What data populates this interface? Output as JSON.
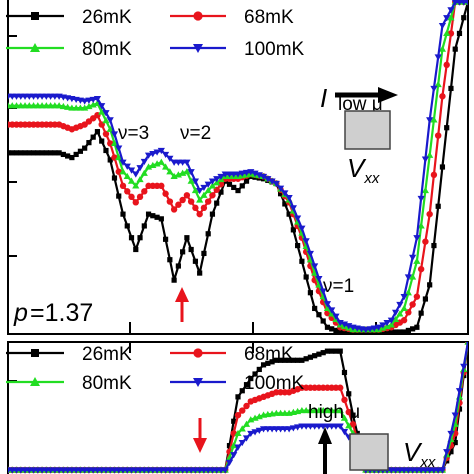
{
  "chart_data": [
    {
      "type": "line",
      "panel": "top",
      "annotation": "p =1.37",
      "param_symbol": "p",
      "param_value": "=1.37",
      "nu_labels": [
        "ν=3",
        "ν=2",
        "ν=1"
      ],
      "inset": {
        "direction_label": "low μ",
        "current_label": "I",
        "voltage_label": "V",
        "voltage_sub": "xx"
      },
      "series": [
        {
          "name": "26mK",
          "color": "#000000",
          "marker": "square",
          "values": [
            0.76,
            0.76,
            0.76,
            0.76,
            0.76,
            0.74,
            0.78,
            0.85,
            0.73,
            0.5,
            0.35,
            0.5,
            0.48,
            0.22,
            0.4,
            0.25,
            0.5,
            0.64,
            0.6,
            0.66,
            0.65,
            0.63,
            0.5,
            0.3,
            0.1,
            0.02,
            0.0,
            0.0,
            0.0,
            0.0,
            0.0,
            0.0,
            0.02,
            0.2,
            0.7,
            1.2,
            1.4
          ]
        },
        {
          "name": "68mK",
          "color": "#e8141c",
          "marker": "circle",
          "values": [
            0.88,
            0.88,
            0.88,
            0.88,
            0.88,
            0.86,
            0.88,
            0.92,
            0.8,
            0.62,
            0.55,
            0.62,
            0.62,
            0.52,
            0.58,
            0.5,
            0.58,
            0.65,
            0.65,
            0.67,
            0.66,
            0.63,
            0.55,
            0.4,
            0.22,
            0.08,
            0.02,
            0.01,
            0.01,
            0.01,
            0.02,
            0.05,
            0.15,
            0.5,
            1.0,
            1.4,
            1.4
          ]
        },
        {
          "name": "80mK",
          "color": "#22dd22",
          "marker": "triangle-up",
          "values": [
            0.96,
            0.96,
            0.96,
            0.96,
            0.96,
            0.95,
            0.95,
            0.97,
            0.86,
            0.68,
            0.62,
            0.7,
            0.72,
            0.66,
            0.68,
            0.56,
            0.62,
            0.66,
            0.66,
            0.67,
            0.66,
            0.63,
            0.56,
            0.42,
            0.25,
            0.1,
            0.03,
            0.01,
            0.01,
            0.01,
            0.03,
            0.1,
            0.3,
            0.75,
            1.2,
            1.4,
            1.4
          ]
        },
        {
          "name": "100mK",
          "color": "#1a1acc",
          "marker": "triangle-down",
          "values": [
            1.0,
            1.0,
            1.0,
            1.0,
            1.0,
            0.99,
            0.98,
            0.99,
            0.9,
            0.72,
            0.67,
            0.75,
            0.77,
            0.72,
            0.72,
            0.6,
            0.64,
            0.67,
            0.67,
            0.68,
            0.66,
            0.63,
            0.57,
            0.44,
            0.28,
            0.12,
            0.04,
            0.02,
            0.01,
            0.02,
            0.05,
            0.15,
            0.4,
            0.9,
            1.3,
            1.4,
            1.4
          ]
        }
      ],
      "ylim": [
        0,
        1.4
      ],
      "grid": false,
      "legend_position": "top-left"
    },
    {
      "type": "line",
      "panel": "bottom",
      "inset": {
        "direction_label": "high μ",
        "voltage_label": "V",
        "voltage_sub": "xx"
      },
      "series": [
        {
          "name": "26mK",
          "color": "#000000",
          "marker": "square",
          "values": [
            0.0,
            0.0,
            0.0,
            0.0,
            0.0,
            0.0,
            0.0,
            0.0,
            0.0,
            0.0,
            0.0,
            0.0,
            0.0,
            0.0,
            0.0,
            0.0,
            0.0,
            0.0,
            0.8,
            1.0,
            1.15,
            1.2,
            1.2,
            1.2,
            1.25,
            1.3,
            1.3,
            0.6,
            0.0,
            0.0,
            0.0,
            0.0,
            0.0,
            0.0,
            0.0,
            0.3,
            1.4
          ]
        },
        {
          "name": "68mK",
          "color": "#e8141c",
          "marker": "circle",
          "values": [
            0.0,
            0.0,
            0.0,
            0.0,
            0.0,
            0.0,
            0.0,
            0.0,
            0.0,
            0.0,
            0.0,
            0.0,
            0.0,
            0.0,
            0.0,
            0.0,
            0.0,
            0.0,
            0.6,
            0.75,
            0.8,
            0.85,
            0.85,
            0.9,
            0.9,
            0.9,
            0.9,
            0.5,
            0.0,
            0.0,
            0.0,
            0.0,
            0.0,
            0.0,
            0.0,
            0.4,
            1.4
          ]
        },
        {
          "name": "80mK",
          "color": "#22dd22",
          "marker": "triangle-up",
          "values": [
            0.0,
            0.0,
            0.0,
            0.0,
            0.0,
            0.0,
            0.0,
            0.0,
            0.0,
            0.0,
            0.0,
            0.0,
            0.0,
            0.0,
            0.0,
            0.0,
            0.0,
            0.0,
            0.4,
            0.55,
            0.6,
            0.62,
            0.62,
            0.65,
            0.65,
            0.65,
            0.65,
            0.4,
            0.0,
            0.0,
            0.0,
            0.0,
            0.0,
            0.0,
            0.0,
            0.5,
            1.4
          ]
        },
        {
          "name": "100mK",
          "color": "#1a1acc",
          "marker": "triangle-down",
          "values": [
            0.0,
            0.0,
            0.0,
            0.0,
            0.0,
            0.0,
            0.0,
            0.0,
            0.0,
            0.0,
            0.0,
            0.0,
            0.0,
            0.0,
            0.0,
            0.0,
            0.0,
            0.0,
            0.25,
            0.4,
            0.45,
            0.45,
            0.45,
            0.48,
            0.48,
            0.48,
            0.48,
            0.3,
            0.0,
            0.0,
            0.0,
            0.0,
            0.0,
            0.0,
            0.0,
            0.6,
            1.4
          ]
        }
      ],
      "ylim": [
        0,
        1.4
      ],
      "grid": false,
      "legend_position": "top-left"
    }
  ]
}
